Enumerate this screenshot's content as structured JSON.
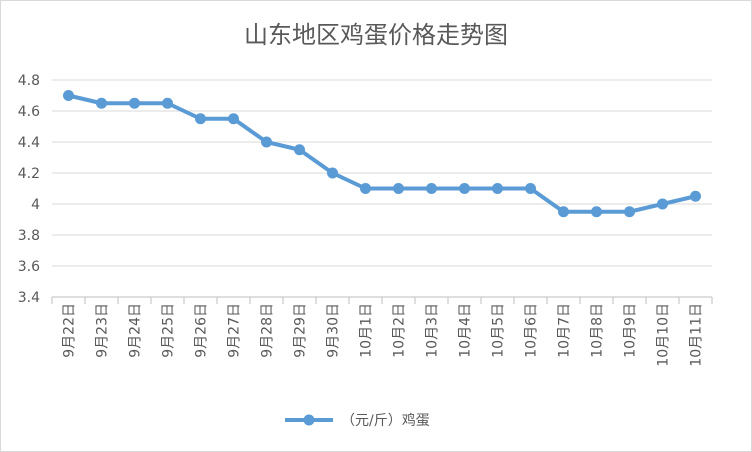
{
  "chart_data": {
    "type": "line",
    "title": "山东地区鸡蛋价格走势图",
    "xlabel": "",
    "ylabel": "",
    "categories": [
      "9月22日",
      "9月23日",
      "9月24日",
      "9月25日",
      "9月26日",
      "9月27日",
      "9月28日",
      "9月29日",
      "9月30日",
      "10月1日",
      "10月2日",
      "10月3日",
      "10月4日",
      "10月5日",
      "10月6日",
      "10月7日",
      "10月8日",
      "10月9日",
      "10月10日",
      "10月11日"
    ],
    "y_ticks": [
      "3.4",
      "3.6",
      "3.8",
      "4",
      "4.2",
      "4.4",
      "4.6",
      "4.8"
    ],
    "ylim": [
      3.4,
      4.8
    ],
    "grid": "horizontal",
    "legend_position": "bottom",
    "series": [
      {
        "name": "（元/斤）鸡蛋",
        "color": "#5b9bd5",
        "values": [
          4.7,
          4.65,
          4.65,
          4.65,
          4.55,
          4.55,
          4.4,
          4.35,
          4.2,
          4.1,
          4.1,
          4.1,
          4.1,
          4.1,
          4.1,
          3.95,
          3.95,
          3.95,
          4.0,
          4.05
        ]
      }
    ]
  }
}
